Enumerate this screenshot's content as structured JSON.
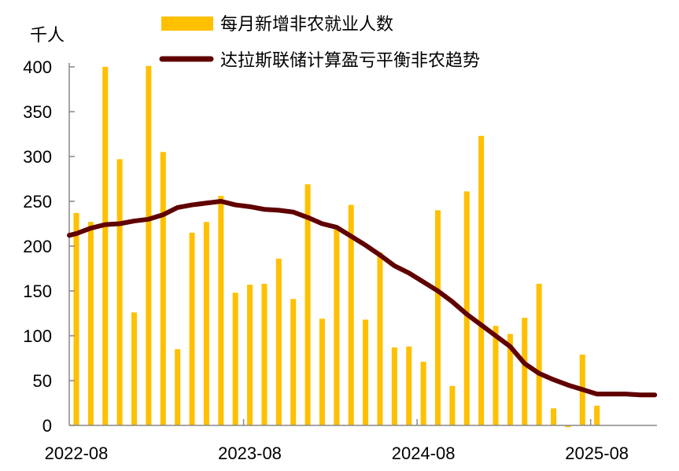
{
  "chart_data": {
    "type": "bar+line",
    "ylabel": "千人",
    "ylim": [
      0,
      400
    ],
    "yticks": [
      0,
      50,
      100,
      150,
      200,
      250,
      300,
      350,
      400
    ],
    "xtick_labels": [
      "2022-08",
      "2023-08",
      "2024-08",
      "2025-08"
    ],
    "months": [
      "2022-08",
      "2022-09",
      "2022-10",
      "2022-11",
      "2022-12",
      "2023-01",
      "2023-02",
      "2023-03",
      "2023-04",
      "2023-05",
      "2023-06",
      "2023-07",
      "2023-08",
      "2023-09",
      "2023-10",
      "2023-11",
      "2023-12",
      "2024-01",
      "2024-02",
      "2024-03",
      "2024-04",
      "2024-05",
      "2024-06",
      "2024-07",
      "2024-08",
      "2024-09",
      "2024-10",
      "2024-11",
      "2024-12",
      "2025-01",
      "2025-02",
      "2025-03",
      "2025-04",
      "2025-05",
      "2025-06",
      "2025-07",
      "2025-08",
      "2025-09",
      "2025-10",
      "2025-11",
      "2025-12"
    ],
    "series": [
      {
        "name": "每月新增非农就业人数",
        "type": "bar",
        "color": "#FFC000",
        "values": [
          237,
          227,
          400,
          297,
          126,
          401,
          305,
          85,
          215,
          227,
          256,
          148,
          157,
          158,
          186,
          141,
          269,
          119,
          220,
          246,
          118,
          193,
          87,
          88,
          71,
          240,
          44,
          261,
          323,
          111,
          102,
          120,
          158,
          19,
          -2,
          79,
          22
        ]
      },
      {
        "name": "达拉斯联储计算盈亏平衡非农趋势",
        "type": "line",
        "color": "#600000",
        "values": [
          214,
          220,
          224,
          225,
          228,
          230,
          235,
          243,
          246,
          248,
          250,
          246,
          244,
          241,
          240,
          238,
          232,
          225,
          221,
          211,
          201,
          190,
          178,
          170,
          160,
          150,
          138,
          124,
          112,
          100,
          88,
          69,
          58,
          51,
          45,
          40,
          35,
          35,
          35,
          34,
          34
        ]
      }
    ],
    "legend": "top"
  }
}
